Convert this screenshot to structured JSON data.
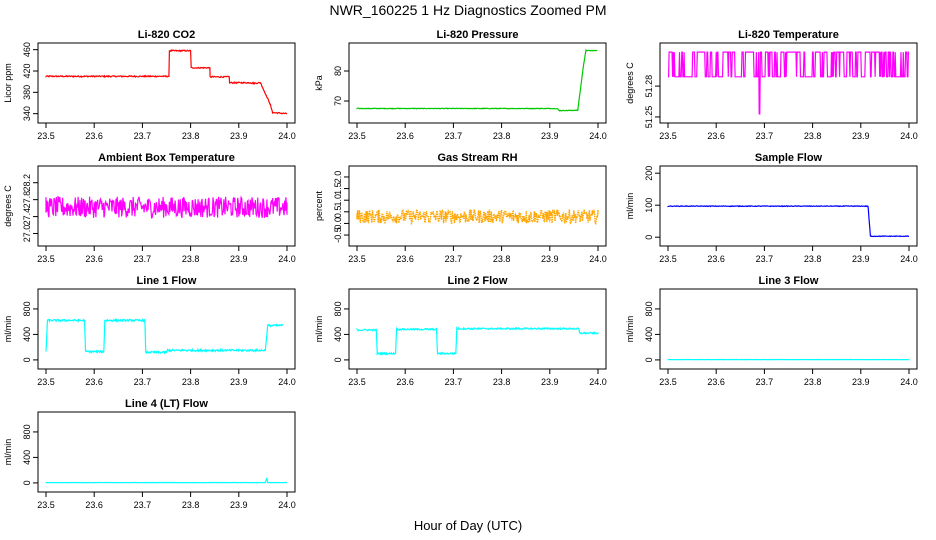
{
  "figure": {
    "title": "NWR_160225  1 Hz Diagnostics Zoomed PM",
    "xlabel": "Hour of Day (UTC)"
  },
  "chart_data": [
    {
      "type": "line",
      "title": "Li-820 CO2",
      "ylabel": "Licor ppm",
      "color": "#ff0000",
      "xlim": [
        23.5,
        24.0
      ],
      "xticks": [
        23.5,
        23.6,
        23.7,
        23.8,
        23.9,
        24.0
      ],
      "ylim": [
        330,
        465
      ],
      "yticks": [
        340,
        380,
        420,
        460
      ],
      "series": [
        {
          "name": "CO2",
          "x": [
            23.5,
            23.755,
            23.755,
            23.8,
            23.8,
            23.84,
            23.84,
            23.88,
            23.88,
            23.925,
            23.93,
            23.945,
            23.965,
            23.97,
            24.0
          ],
          "y": [
            410,
            410,
            458,
            458,
            426,
            426,
            409,
            409,
            398,
            398,
            397,
            398,
            358,
            342,
            340
          ]
        }
      ],
      "noise": 1.2
    },
    {
      "type": "line",
      "title": "Li-820 Pressure",
      "ylabel": "kPa",
      "color": "#00c800",
      "xlim": [
        23.5,
        24.0
      ],
      "xticks": [
        23.5,
        23.6,
        23.7,
        23.8,
        23.9,
        24.0
      ],
      "ylim": [
        64,
        88
      ],
      "yticks": [
        70,
        80
      ],
      "series": [
        {
          "name": "Pressure",
          "x": [
            23.5,
            23.915,
            23.92,
            23.958,
            23.97,
            23.975,
            23.998
          ],
          "y": [
            67.5,
            67.5,
            66.8,
            66.9,
            82.0,
            86.8,
            86.8
          ]
        }
      ],
      "noise": 0.1
    },
    {
      "type": "line",
      "title": "Li-820 Temperature",
      "ylabel": "degrees C",
      "color": "#ff00ff",
      "xlim": [
        23.5,
        24.0
      ],
      "xticks": [
        23.5,
        23.6,
        23.7,
        23.8,
        23.9,
        24.0
      ],
      "ylim": [
        51.248,
        51.318
      ],
      "yticks": [
        51.25,
        51.28
      ],
      "series": [
        {
          "name": "Temperature",
          "levels": [
            51.289,
            51.313
          ],
          "dip": {
            "x": 23.69,
            "y": 51.253
          }
        }
      ],
      "noise": 0
    },
    {
      "type": "line",
      "title": "Ambient Box Temperature",
      "ylabel": "degrees C",
      "color": "#ff00ff",
      "xlim": [
        23.5,
        24.0
      ],
      "xticks": [
        23.5,
        23.6,
        23.7,
        23.8,
        23.9,
        24.0
      ],
      "ylim": [
        26.8,
        28.5
      ],
      "yticks": [
        27.0,
        27.4,
        27.8,
        28.2
      ],
      "series": [
        {
          "name": "Box Temperature",
          "x": [
            23.5,
            24.0
          ],
          "y": [
            27.62,
            27.62
          ]
        }
      ],
      "noise": 0.25
    },
    {
      "type": "line",
      "title": "Gas Stream RH",
      "ylabel": "percent",
      "color": "#ffa500",
      "xlim": [
        23.5,
        24.0
      ],
      "xticks": [
        23.5,
        23.6,
        23.7,
        23.8,
        23.9,
        24.0
      ],
      "ylim": [
        -0.8,
        2.3
      ],
      "yticks": [
        -0.5,
        0.0,
        0.5,
        1.0,
        1.5,
        2.0
      ],
      "series": [
        {
          "name": "RH",
          "x": [
            23.5,
            24.0
          ],
          "y": [
            0.3,
            0.3
          ]
        }
      ],
      "noise": 0.3,
      "dotted": true
    },
    {
      "type": "line",
      "title": "Sample Flow",
      "ylabel": "ml/min",
      "color": "#0000ff",
      "xlim": [
        23.5,
        24.0
      ],
      "xticks": [
        23.5,
        23.6,
        23.7,
        23.8,
        23.9,
        24.0
      ],
      "ylim": [
        -15,
        210
      ],
      "yticks": [
        0,
        100,
        200
      ],
      "series": [
        {
          "name": "Sample Flow",
          "x": [
            23.5,
            23.915,
            23.92,
            24.0
          ],
          "y": [
            97,
            97,
            3,
            3
          ]
        }
      ],
      "noise": 1.0
    },
    {
      "type": "line",
      "title": "Line 1 Flow",
      "ylabel": "ml/min",
      "color": "#00ffff",
      "xlim": [
        23.5,
        24.0
      ],
      "xticks": [
        23.5,
        23.6,
        23.7,
        23.8,
        23.9,
        24.0
      ],
      "ylim": [
        -80,
        1050
      ],
      "yticks": [
        0,
        400,
        800
      ],
      "series": [
        {
          "name": "Line 1",
          "x": [
            23.5,
            23.503,
            23.58,
            23.582,
            23.62,
            23.622,
            23.705,
            23.707,
            23.75,
            23.752,
            23.955,
            23.96,
            23.99
          ],
          "y": [
            130,
            620,
            620,
            130,
            130,
            620,
            620,
            120,
            120,
            150,
            150,
            540,
            540
          ]
        }
      ],
      "noise": 15
    },
    {
      "type": "line",
      "title": "Line 2 Flow",
      "ylabel": "ml/min",
      "color": "#00ffff",
      "xlim": [
        23.5,
        24.0
      ],
      "xticks": [
        23.5,
        23.6,
        23.7,
        23.8,
        23.9,
        24.0
      ],
      "ylim": [
        -80,
        1050
      ],
      "yticks": [
        0,
        400,
        800
      ],
      "series": [
        {
          "name": "Line 2",
          "x": [
            23.5,
            23.54,
            23.542,
            23.58,
            23.582,
            23.665,
            23.667,
            23.705,
            23.707,
            23.96,
            23.962,
            24.0
          ],
          "y": [
            470,
            470,
            100,
            100,
            480,
            480,
            100,
            100,
            490,
            490,
            420,
            420
          ]
        }
      ],
      "noise": 12
    },
    {
      "type": "line",
      "title": "Line 3 Flow",
      "ylabel": "ml/min",
      "color": "#00ffff",
      "xlim": [
        23.5,
        24.0
      ],
      "xticks": [
        23.5,
        23.6,
        23.7,
        23.8,
        23.9,
        24.0
      ],
      "ylim": [
        -80,
        1050
      ],
      "yticks": [
        0,
        400,
        800
      ],
      "series": [
        {
          "name": "Line 3",
          "x": [
            23.5,
            24.0
          ],
          "y": [
            5,
            5
          ]
        }
      ],
      "noise": 1.5
    },
    {
      "type": "line",
      "title": "Line 4 (LT) Flow",
      "ylabel": "ml/min",
      "color": "#00ffff",
      "xlim": [
        23.5,
        24.0
      ],
      "xticks": [
        23.5,
        23.6,
        23.7,
        23.8,
        23.9,
        24.0
      ],
      "ylim": [
        -80,
        1050
      ],
      "yticks": [
        0,
        400,
        800
      ],
      "series": [
        {
          "name": "Line 4",
          "x": [
            23.5,
            23.955,
            23.958,
            23.96,
            24.0
          ],
          "y": [
            5,
            5,
            80,
            5,
            5
          ]
        }
      ],
      "noise": 1.5
    }
  ]
}
